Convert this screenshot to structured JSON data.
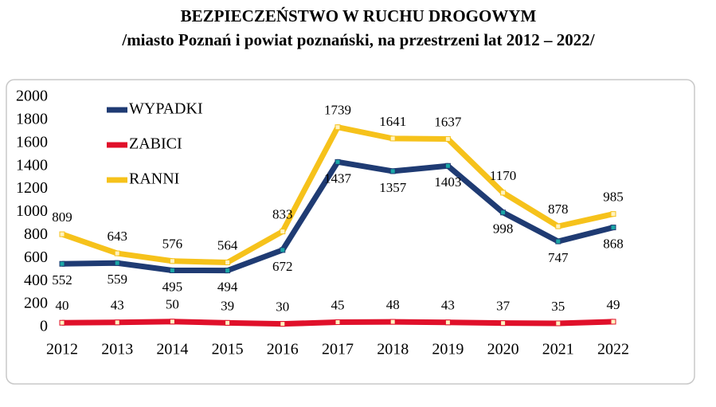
{
  "chart_data": {
    "type": "line",
    "title": "BEZPIECZEŃSTWO W RUCHU DROGOWYM",
    "subtitle": "/miasto Poznań i powiat poznański, na przestrzeni lat 2012 – 2022/",
    "categories": [
      "2012",
      "2013",
      "2014",
      "2015",
      "2016",
      "2017",
      "2018",
      "2019",
      "2020",
      "2021",
      "2022"
    ],
    "series": [
      {
        "name": "WYPADKI",
        "color": "#1f3b73",
        "values": [
          552,
          559,
          495,
          494,
          672,
          1437,
          1357,
          1403,
          998,
          747,
          868
        ]
      },
      {
        "name": "ZABICI",
        "color": "#e0102a",
        "values": [
          40,
          43,
          50,
          39,
          30,
          45,
          48,
          43,
          37,
          35,
          49
        ]
      },
      {
        "name": "RANNI",
        "color": "#f6c21b",
        "values": [
          809,
          643,
          576,
          564,
          833,
          1739,
          1641,
          1637,
          1170,
          878,
          985
        ]
      }
    ],
    "ylim": [
      0,
      2000
    ],
    "yticks": [
      0,
      200,
      400,
      600,
      800,
      1000,
      1200,
      1400,
      1600,
      1800,
      2000
    ]
  }
}
